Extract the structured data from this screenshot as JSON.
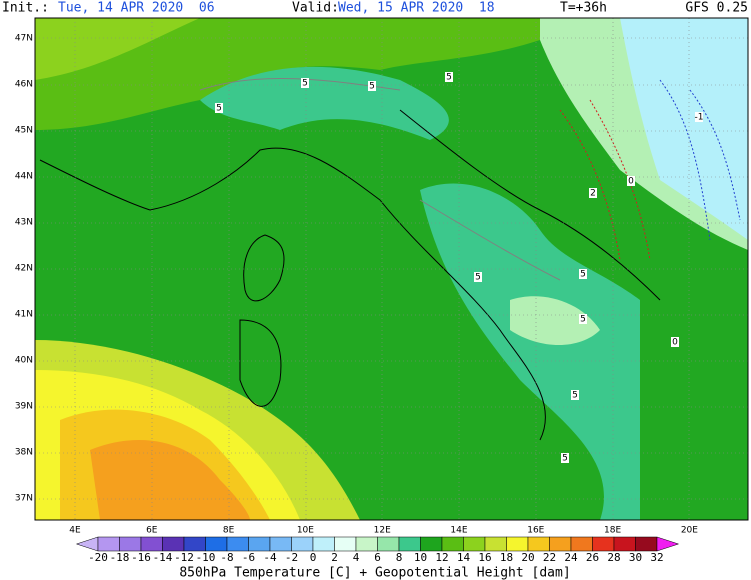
{
  "header": {
    "init_label": "Init.:",
    "init_time": "Tue, 14 APR 2020  06",
    "valid_label": "Valid:",
    "valid_time": "Wed, 15 APR 2020  18",
    "lead": "T=+36h",
    "model": "GFS 0.25"
  },
  "lat_labels": [
    "47N",
    "46N",
    "45N",
    "44N",
    "43N",
    "42N",
    "41N",
    "40N",
    "39N",
    "38N",
    "37N"
  ],
  "lon_labels": [
    "4E",
    "6E",
    "8E",
    "10E",
    "12E",
    "14E",
    "16E",
    "18E",
    "20E"
  ],
  "contour_labels": [
    "5",
    "5",
    "5",
    "5",
    "5",
    "5",
    "5",
    "5",
    "5",
    "-1",
    "2",
    "0",
    "0"
  ],
  "colorbar": {
    "ticks": [
      -20,
      -18,
      -16,
      -14,
      -12,
      -10,
      -8,
      -6,
      -4,
      -2,
      0,
      2,
      4,
      6,
      8,
      10,
      12,
      14,
      16,
      18,
      20,
      22,
      24,
      26,
      28,
      30,
      32
    ],
    "colors": [
      "#c8b4f5",
      "#b496f0",
      "#9b78e6",
      "#8250d2",
      "#5a32b4",
      "#3246c8",
      "#1e6ee6",
      "#3c8cf0",
      "#5aa5f0",
      "#78b9f5",
      "#9bd2fa",
      "#bff0fa",
      "#e6fff5",
      "#c8f5c8",
      "#96e6aa",
      "#3cc88c",
      "#1ea51e",
      "#5abe14",
      "#8cd21e",
      "#c8e132",
      "#f5f52d",
      "#f5c81e",
      "#f5a01e",
      "#f0781e",
      "#e6321e",
      "#c8141e",
      "#960a1e",
      "#f01ef0"
    ]
  },
  "caption": "850hPa Temperature [C] + Geopotential Height [dam]"
}
